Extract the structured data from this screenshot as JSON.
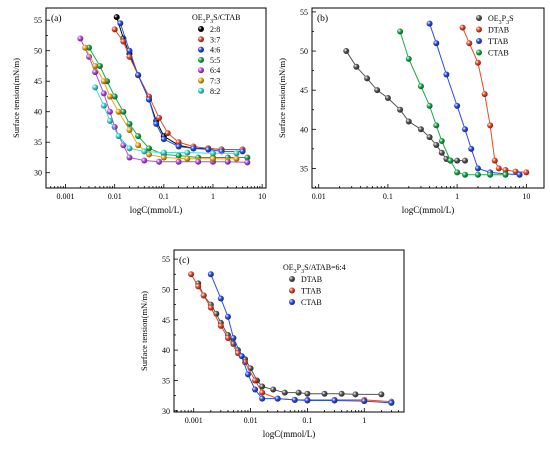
{
  "chart_data": [
    {
      "type": "scatter",
      "panel_label": "(a)",
      "xlabel": "logC(mmol/L)",
      "ylabel": "Surface tension(mN/m)",
      "xscale": "log",
      "xlim": [
        0.0004,
        12
      ],
      "ylim": [
        27.5,
        57
      ],
      "x_ticks": [
        "0.001",
        "0.01",
        "0.1",
        "1",
        "10"
      ],
      "y_ticks": [
        "30",
        "35",
        "40",
        "45",
        "50",
        "55"
      ],
      "legend_title_parts": [
        "OE",
        "3",
        "P",
        "3",
        "S/CTAB"
      ],
      "legend_position": "top-right",
      "series": [
        {
          "name": "2:8",
          "color": "#000000",
          "points": [
            [
              0.011,
              55.5
            ],
            [
              0.015,
              52
            ],
            [
              0.02,
              49.5
            ],
            [
              0.03,
              46
            ],
            [
              0.05,
              42
            ],
            [
              0.07,
              38.5
            ],
            [
              0.1,
              36
            ],
            [
              0.2,
              34.5
            ],
            [
              0.4,
              34
            ],
            [
              0.8,
              34
            ],
            [
              1.5,
              33.8
            ],
            [
              4,
              33.8
            ]
          ]
        },
        {
          "name": "3:7",
          "color": "#e04a2a",
          "points": [
            [
              0.01,
              53.5
            ],
            [
              0.015,
              51.5
            ],
            [
              0.02,
              49
            ],
            [
              0.03,
              46
            ],
            [
              0.05,
              42.5
            ],
            [
              0.08,
              39
            ],
            [
              0.12,
              36.5
            ],
            [
              0.2,
              35
            ],
            [
              0.4,
              34.3
            ],
            [
              0.8,
              34
            ],
            [
              1.5,
              33.8
            ],
            [
              4,
              33.8
            ]
          ]
        },
        {
          "name": "4:6",
          "color": "#2b4de0",
          "points": [
            [
              0.013,
              54.5
            ],
            [
              0.02,
              50
            ],
            [
              0.03,
              46
            ],
            [
              0.05,
              42
            ],
            [
              0.07,
              38
            ],
            [
              0.1,
              35.5
            ],
            [
              0.2,
              34.3
            ],
            [
              0.4,
              34
            ],
            [
              0.8,
              33.8
            ],
            [
              1.5,
              33.5
            ],
            [
              4,
              33.5
            ]
          ]
        },
        {
          "name": "5:5",
          "color": "#1aa84a",
          "points": [
            [
              0.003,
              50.5
            ],
            [
              0.005,
              47.5
            ],
            [
              0.007,
              45
            ],
            [
              0.01,
              42.5
            ],
            [
              0.015,
              40
            ],
            [
              0.02,
              38
            ],
            [
              0.03,
              36
            ],
            [
              0.05,
              34
            ],
            [
              0.1,
              33
            ],
            [
              0.2,
              32.8
            ],
            [
              0.5,
              32.5
            ],
            [
              1,
              32.5
            ],
            [
              2,
              32.5
            ],
            [
              5,
              32.5
            ]
          ]
        },
        {
          "name": "6:4",
          "color": "#b44be0",
          "points": [
            [
              0.002,
              52
            ],
            [
              0.003,
              49
            ],
            [
              0.004,
              46.5
            ],
            [
              0.006,
              43
            ],
            [
              0.008,
              40
            ],
            [
              0.01,
              37.5
            ],
            [
              0.015,
              34.5
            ],
            [
              0.02,
              32.5
            ],
            [
              0.04,
              32
            ],
            [
              0.08,
              31.8
            ],
            [
              0.2,
              31.8
            ],
            [
              0.5,
              31.8
            ],
            [
              1,
              31.8
            ],
            [
              2,
              31.8
            ],
            [
              5,
              31.7
            ]
          ]
        },
        {
          "name": "7:3",
          "color": "#e8a51a",
          "points": [
            [
              0.0025,
              50.5
            ],
            [
              0.004,
              47.5
            ],
            [
              0.006,
              45
            ],
            [
              0.008,
              42.5
            ],
            [
              0.012,
              40
            ],
            [
              0.02,
              37
            ],
            [
              0.03,
              34.5
            ],
            [
              0.05,
              33
            ],
            [
              0.1,
              32.5
            ],
            [
              0.3,
              32.3
            ],
            [
              1,
              32.3
            ],
            [
              3,
              32.3
            ]
          ]
        },
        {
          "name": "8:2",
          "color": "#3fd8d2",
          "points": [
            [
              0.004,
              44
            ],
            [
              0.006,
              41
            ],
            [
              0.008,
              38.5
            ],
            [
              0.012,
              36
            ],
            [
              0.02,
              34
            ],
            [
              0.04,
              33.5
            ],
            [
              0.1,
              33.3
            ],
            [
              0.3,
              33.3
            ],
            [
              1,
              33.2
            ],
            [
              3,
              33.2
            ]
          ]
        }
      ]
    },
    {
      "type": "scatter",
      "panel_label": "(b)",
      "xlabel": "logC(mmol/L)",
      "ylabel": "Surface tension(mN/m)",
      "xscale": "log",
      "xlim": [
        0.008,
        18
      ],
      "ylim": [
        32.5,
        55.5
      ],
      "x_ticks": [
        "0.01",
        "0.1",
        "1",
        "10"
      ],
      "y_ticks": [
        "35",
        "40",
        "45",
        "50",
        "55"
      ],
      "legend_position": "top-right",
      "series": [
        {
          "name_parts": [
            "OE",
            "3",
            "P",
            "3",
            "S"
          ],
          "color": "#555555",
          "points": [
            [
              0.025,
              50
            ],
            [
              0.035,
              48
            ],
            [
              0.05,
              46.5
            ],
            [
              0.07,
              45
            ],
            [
              0.1,
              44
            ],
            [
              0.15,
              42.5
            ],
            [
              0.2,
              41
            ],
            [
              0.3,
              40
            ],
            [
              0.4,
              39
            ],
            [
              0.5,
              38
            ],
            [
              0.6,
              37
            ],
            [
              0.7,
              36.2
            ],
            [
              0.8,
              36
            ],
            [
              1,
              36
            ],
            [
              1.3,
              36
            ]
          ]
        },
        {
          "name": "DTAB",
          "color": "#e04a2a",
          "points": [
            [
              1.2,
              53
            ],
            [
              1.5,
              51
            ],
            [
              2,
              48.5
            ],
            [
              2.5,
              44.5
            ],
            [
              3,
              40.5
            ],
            [
              3.5,
              36
            ],
            [
              4,
              35
            ],
            [
              5,
              34.8
            ],
            [
              7,
              34.6
            ],
            [
              10,
              34.5
            ]
          ]
        },
        {
          "name": "TTAB",
          "color": "#2b4de0",
          "points": [
            [
              0.4,
              53.5
            ],
            [
              0.5,
              51
            ],
            [
              0.7,
              47
            ],
            [
              1,
              43
            ],
            [
              1.3,
              40
            ],
            [
              1.6,
              37.5
            ],
            [
              2,
              35
            ],
            [
              3,
              34.5
            ],
            [
              5,
              34.3
            ],
            [
              8,
              34.2
            ]
          ]
        },
        {
          "name": "CTAB",
          "color": "#1aa84a",
          "points": [
            [
              0.15,
              52.5
            ],
            [
              0.2,
              49
            ],
            [
              0.3,
              45.5
            ],
            [
              0.4,
              43
            ],
            [
              0.5,
              40.5
            ],
            [
              0.6,
              38.5
            ],
            [
              0.8,
              36
            ],
            [
              1,
              34.5
            ],
            [
              1.3,
              34.2
            ],
            [
              2,
              34.2
            ],
            [
              3,
              34.2
            ],
            [
              5,
              34.2
            ]
          ]
        }
      ]
    },
    {
      "type": "scatter",
      "panel_label": "(c)",
      "xlabel": "logC(mmol/L)",
      "ylabel": "Surface tension(mN/m)",
      "xscale": "log",
      "xlim": [
        0.00045,
        5
      ],
      "ylim": [
        29.8,
        56.5
      ],
      "x_ticks": [
        "0.001",
        "0.01",
        "0.1",
        "1"
      ],
      "y_ticks": [
        "30",
        "35",
        "40",
        "45",
        "50",
        "55"
      ],
      "legend_title_parts": [
        "OE",
        "3",
        "P",
        "3",
        "S/ATAB=6:4"
      ],
      "legend_position": "top-right",
      "series": [
        {
          "name": "DTAB",
          "color": "#555555",
          "points": [
            [
              0.0012,
              51
            ],
            [
              0.0015,
              49
            ],
            [
              0.002,
              47.5
            ],
            [
              0.0025,
              46
            ],
            [
              0.003,
              44.5
            ],
            [
              0.004,
              42.5
            ],
            [
              0.005,
              41
            ],
            [
              0.006,
              40
            ],
            [
              0.008,
              38.5
            ],
            [
              0.01,
              37
            ],
            [
              0.013,
              35
            ],
            [
              0.016,
              34
            ],
            [
              0.025,
              33.5
            ],
            [
              0.04,
              33
            ],
            [
              0.07,
              33
            ],
            [
              0.1,
              32.8
            ],
            [
              0.2,
              32.8
            ],
            [
              0.4,
              32.8
            ],
            [
              0.7,
              32.7
            ],
            [
              2,
              32.7
            ]
          ]
        },
        {
          "name": "TTAB",
          "color": "#e04a2a",
          "points": [
            [
              0.0009,
              52.5
            ],
            [
              0.0012,
              50.5
            ],
            [
              0.0015,
              49
            ],
            [
              0.002,
              47
            ],
            [
              0.003,
              44
            ],
            [
              0.004,
              42
            ],
            [
              0.006,
              39.5
            ],
            [
              0.008,
              38
            ],
            [
              0.012,
              35
            ],
            [
              0.016,
              33
            ],
            [
              0.03,
              32
            ],
            [
              0.06,
              31.8
            ],
            [
              0.1,
              31.8
            ],
            [
              0.3,
              31.8
            ],
            [
              1,
              31.8
            ],
            [
              3,
              31.5
            ]
          ]
        },
        {
          "name": "CTAB",
          "color": "#2b4de0",
          "points": [
            [
              0.002,
              52.5
            ],
            [
              0.003,
              48.5
            ],
            [
              0.004,
              45.5
            ],
            [
              0.005,
              42
            ],
            [
              0.007,
              39
            ],
            [
              0.009,
              36
            ],
            [
              0.012,
              33.5
            ],
            [
              0.016,
              32
            ],
            [
              0.03,
              32
            ],
            [
              0.06,
              31.8
            ],
            [
              0.1,
              31.7
            ],
            [
              0.3,
              31.7
            ],
            [
              1,
              31.6
            ],
            [
              3,
              31.3
            ]
          ]
        }
      ]
    }
  ]
}
